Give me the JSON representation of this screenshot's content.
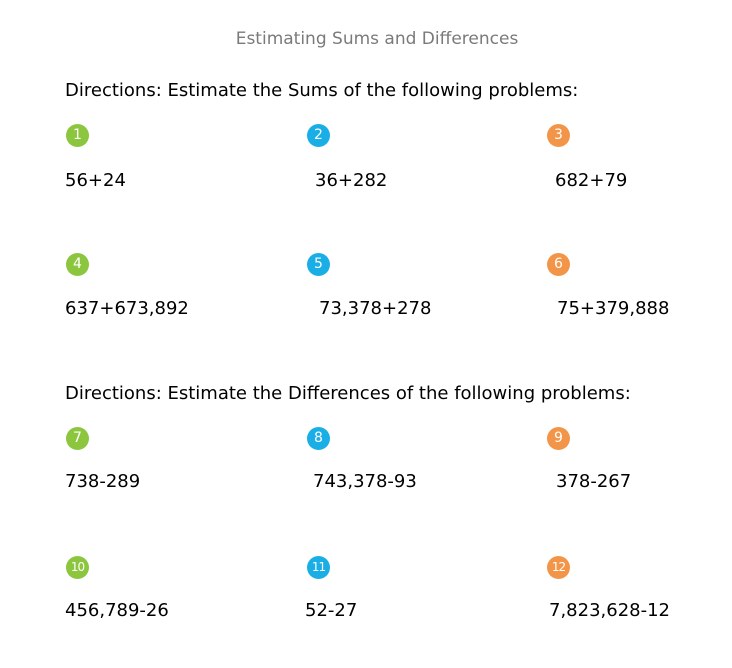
{
  "title": "Estimating Sums and Differences",
  "sums": {
    "directions": "Directions:  Estimate the Sums of the following problems:",
    "problems": [
      {
        "number": "1",
        "expression": "56+24"
      },
      {
        "number": "2",
        "expression": "36+282"
      },
      {
        "number": "3",
        "expression": "682+79"
      },
      {
        "number": "4",
        "expression": "637+673,892"
      },
      {
        "number": "5",
        "expression": "73,378+278"
      },
      {
        "number": "6",
        "expression": "75+379,888"
      }
    ]
  },
  "differences": {
    "directions": "Directions:  Estimate the Differences  of the following problems:",
    "problems": [
      {
        "number": "7",
        "expression": "738-289"
      },
      {
        "number": "8",
        "expression": "743,378-93"
      },
      {
        "number": "9",
        "expression": "378-267"
      },
      {
        "number": "10",
        "expression": "456,789-26"
      },
      {
        "number": "11",
        "expression": "52-27"
      },
      {
        "number": "12",
        "expression": "7,823,628-12"
      }
    ]
  },
  "colors": {
    "title_text": "#7a7a7a",
    "badge_col1": "#8cc63f",
    "badge_col2": "#1aaee6",
    "badge_col3": "#f39549"
  }
}
